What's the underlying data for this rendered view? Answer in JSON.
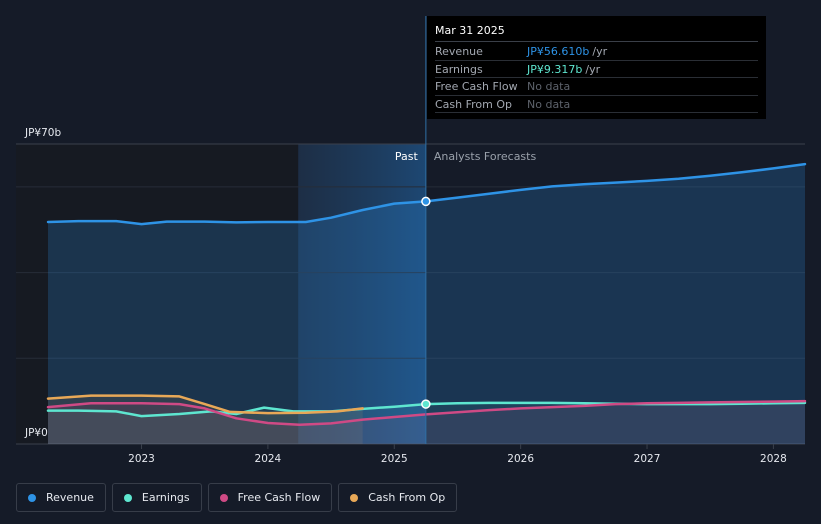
{
  "chart_data": {
    "type": "line",
    "y_label_top": "JP¥70b",
    "y_label_bottom": "JP¥0",
    "ylim": [
      0,
      70
    ],
    "xlim": [
      2022.26,
      2028.25
    ],
    "x_ticks": [
      {
        "label": "2023",
        "value": 2023.0
      },
      {
        "label": "2024",
        "value": 2024.0
      },
      {
        "label": "2025",
        "value": 2025.0
      },
      {
        "label": "2026",
        "value": 2026.0
      },
      {
        "label": "2027",
        "value": 2027.0
      },
      {
        "label": "2028",
        "value": 2028.0
      }
    ],
    "grid": true,
    "past_label": "Past",
    "forecast_label": "Analysts Forecasts",
    "divider_x": 2025.25,
    "highlight_start_x": 2024.24,
    "series": [
      {
        "name": "Revenue",
        "color": "#2e93e6",
        "points": [
          [
            2022.26,
            51.8
          ],
          [
            2022.5,
            52.0
          ],
          [
            2022.8,
            52.0
          ],
          [
            2023.0,
            51.3
          ],
          [
            2023.2,
            51.9
          ],
          [
            2023.5,
            51.9
          ],
          [
            2023.75,
            51.7
          ],
          [
            2024.0,
            51.8
          ],
          [
            2024.3,
            51.8
          ],
          [
            2024.5,
            52.8
          ],
          [
            2024.75,
            54.6
          ],
          [
            2025.0,
            56.1
          ],
          [
            2025.25,
            56.6
          ],
          [
            2025.5,
            57.5
          ],
          [
            2025.75,
            58.4
          ],
          [
            2026.0,
            59.3
          ],
          [
            2026.25,
            60.1
          ],
          [
            2026.5,
            60.6
          ],
          [
            2026.75,
            61.0
          ],
          [
            2027.0,
            61.4
          ],
          [
            2027.25,
            61.9
          ],
          [
            2027.5,
            62.6
          ],
          [
            2027.75,
            63.4
          ],
          [
            2028.0,
            64.3
          ],
          [
            2028.25,
            65.3
          ]
        ]
      },
      {
        "name": "Earnings",
        "color": "#5ee6d0",
        "points": [
          [
            2022.26,
            7.8
          ],
          [
            2022.5,
            7.8
          ],
          [
            2022.8,
            7.6
          ],
          [
            2023.0,
            6.5
          ],
          [
            2023.3,
            7.0
          ],
          [
            2023.55,
            7.6
          ],
          [
            2023.75,
            7.0
          ],
          [
            2023.97,
            8.5
          ],
          [
            2024.2,
            7.6
          ],
          [
            2024.5,
            7.6
          ],
          [
            2024.75,
            8.2
          ],
          [
            2025.0,
            8.7
          ],
          [
            2025.25,
            9.317
          ],
          [
            2025.5,
            9.5
          ],
          [
            2025.75,
            9.6
          ],
          [
            2026.0,
            9.6
          ],
          [
            2026.25,
            9.6
          ],
          [
            2026.5,
            9.5
          ],
          [
            2026.75,
            9.4
          ],
          [
            2027.0,
            9.3
          ],
          [
            2027.25,
            9.3
          ],
          [
            2027.5,
            9.3
          ],
          [
            2027.75,
            9.4
          ],
          [
            2028.0,
            9.5
          ],
          [
            2028.25,
            9.6
          ]
        ]
      },
      {
        "name": "Free Cash Flow",
        "color": "#cf4a85",
        "points": [
          [
            2022.26,
            8.6
          ],
          [
            2022.6,
            9.5
          ],
          [
            2023.0,
            9.5
          ],
          [
            2023.3,
            9.3
          ],
          [
            2023.5,
            8.3
          ],
          [
            2023.75,
            6.0
          ],
          [
            2024.0,
            4.9
          ],
          [
            2024.25,
            4.5
          ],
          [
            2024.5,
            4.8
          ],
          [
            2024.75,
            5.7
          ],
          [
            2025.0,
            6.3
          ],
          [
            2025.25,
            6.9
          ],
          [
            2025.5,
            7.4
          ],
          [
            2025.75,
            7.9
          ],
          [
            2026.0,
            8.3
          ],
          [
            2026.25,
            8.6
          ],
          [
            2026.5,
            8.9
          ],
          [
            2026.75,
            9.3
          ],
          [
            2027.0,
            9.5
          ],
          [
            2027.25,
            9.6
          ],
          [
            2027.5,
            9.7
          ],
          [
            2027.75,
            9.8
          ],
          [
            2028.0,
            9.9
          ],
          [
            2028.25,
            10.0
          ]
        ]
      },
      {
        "name": "Cash From Op",
        "color": "#e8a857",
        "points": [
          [
            2022.26,
            10.6
          ],
          [
            2022.6,
            11.3
          ],
          [
            2023.0,
            11.3
          ],
          [
            2023.3,
            11.1
          ],
          [
            2023.5,
            9.3
          ],
          [
            2023.7,
            7.5
          ],
          [
            2024.0,
            7.2
          ],
          [
            2024.3,
            7.3
          ],
          [
            2024.55,
            7.6
          ],
          [
            2024.75,
            8.3
          ]
        ]
      }
    ],
    "highlight": {
      "x": 2025.25,
      "series": [
        "Revenue",
        "Earnings"
      ]
    }
  },
  "tooltip": {
    "date": "Mar 31 2025",
    "rows": [
      {
        "name": "Revenue",
        "value": "JP¥56.610b",
        "unit": "/yr",
        "color": "#2e93e6"
      },
      {
        "name": "Earnings",
        "value": "JP¥9.317b",
        "unit": "/yr",
        "color": "#5ee6d0"
      },
      {
        "name": "Free Cash Flow",
        "value": "No data",
        "unit": ""
      },
      {
        "name": "Cash From Op",
        "value": "No data",
        "unit": ""
      }
    ]
  },
  "legend": [
    {
      "label": "Revenue",
      "color": "#2e93e6"
    },
    {
      "label": "Earnings",
      "color": "#5ee6d0"
    },
    {
      "label": "Free Cash Flow",
      "color": "#cf4a85"
    },
    {
      "label": "Cash From Op",
      "color": "#e8a857"
    }
  ]
}
